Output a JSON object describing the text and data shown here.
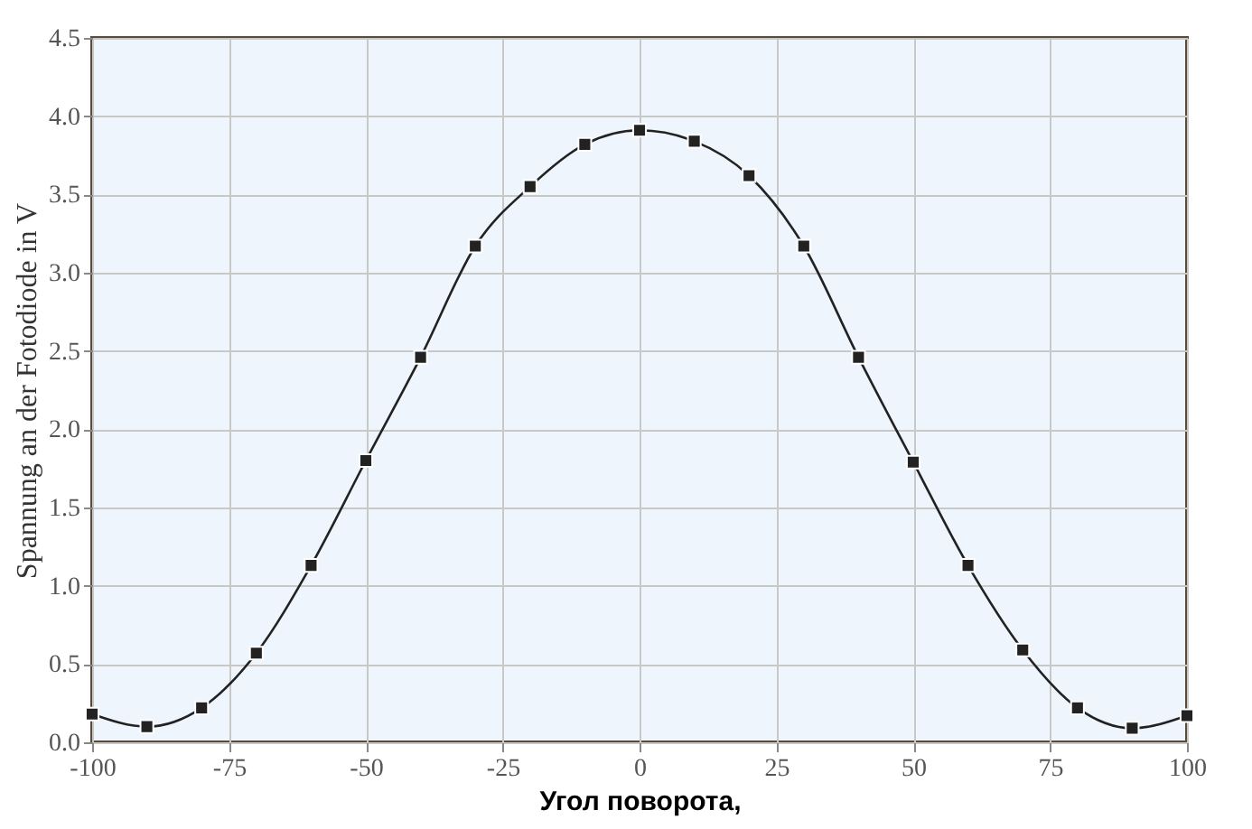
{
  "chart_data": {
    "type": "line",
    "xlabel": "Угол поворота,",
    "ylabel": "Spannung an der Fotodiode in V",
    "x": [
      -100,
      -90,
      -80,
      -70,
      -60,
      -50,
      -40,
      -30,
      -20,
      -10,
      0,
      10,
      20,
      30,
      40,
      50,
      60,
      70,
      80,
      90,
      100
    ],
    "series": [
      {
        "color": "#222222",
        "values": [
          0.18,
          0.1,
          0.22,
          0.57,
          1.13,
          1.8,
          2.46,
          3.17,
          3.55,
          3.82,
          3.91,
          3.84,
          3.62,
          3.17,
          2.46,
          1.79,
          1.13,
          0.59,
          0.22,
          0.09,
          0.17
        ]
      }
    ],
    "xlim": [
      -100,
      100
    ],
    "xticks": [
      -100,
      -75,
      -50,
      -25,
      0,
      25,
      50,
      75,
      100
    ],
    "ylim": [
      0,
      4.5
    ],
    "yticks": [
      {
        "value": 0,
        "label": "0.0"
      },
      {
        "value": 0.5,
        "label": "0.5"
      },
      {
        "value": 1,
        "label": "1.0"
      },
      {
        "value": 1.5,
        "label": "1.5"
      },
      {
        "value": 2,
        "label": "2.0"
      },
      {
        "value": 2.5,
        "label": "2.5"
      },
      {
        "value": 3,
        "label": "3.0"
      },
      {
        "value": 3.5,
        "label": "3.5"
      },
      {
        "value": 4,
        "label": "4.0"
      },
      {
        "value": 4.5,
        "label": "4.5"
      }
    ],
    "grid": true,
    "marker": "square",
    "line_style": "solid"
  }
}
